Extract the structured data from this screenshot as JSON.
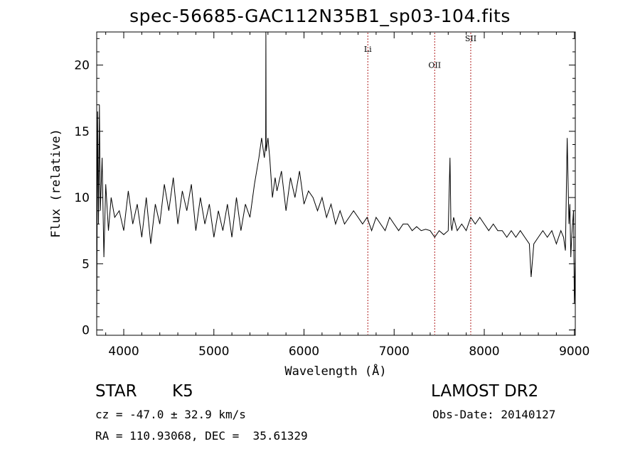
{
  "chart_data": {
    "type": "line",
    "title": "spec-56685-GAC112N35B1_sp03-104.fits",
    "xlabel": "Wavelength (Å)",
    "ylabel": "Flux (relative)",
    "xlim": [
      3700,
      9010
    ],
    "ylim": [
      -0.4,
      22.5
    ],
    "xticks": [
      4000,
      5000,
      6000,
      7000,
      8000,
      9000
    ],
    "xtick_labels": [
      "4000",
      "5000",
      "6000",
      "7000",
      "8000",
      "9000"
    ],
    "yticks": [
      0,
      5,
      10,
      15,
      20
    ],
    "ytick_labels": [
      "0",
      "5",
      "10",
      "15",
      "20"
    ],
    "grid": false,
    "line_color": "#000000",
    "series": [
      {
        "x": [
          3700,
          3710,
          3720,
          3730,
          3740,
          3760,
          3780,
          3800,
          3830,
          3860,
          3900,
          3950,
          4000,
          4050,
          4100,
          4150,
          4200,
          4250,
          4300,
          4350,
          4400,
          4450,
          4500,
          4550,
          4600,
          4650,
          4700,
          4750,
          4800,
          4850,
          4900,
          4950,
          5000,
          5050,
          5100,
          5150,
          5200,
          5250,
          5300,
          5350,
          5400,
          5450,
          5500,
          5530,
          5560,
          5575,
          5577,
          5580,
          5600,
          5620,
          5650,
          5680,
          5700,
          5750,
          5800,
          5850,
          5900,
          5950,
          6000,
          6050,
          6100,
          6150,
          6200,
          6250,
          6300,
          6350,
          6400,
          6450,
          6500,
          6550,
          6600,
          6650,
          6700,
          6750,
          6800,
          6850,
          6900,
          6950,
          7000,
          7050,
          7100,
          7150,
          7200,
          7250,
          7300,
          7350,
          7400,
          7450,
          7500,
          7550,
          7600,
          7620,
          7630,
          7640,
          7660,
          7700,
          7750,
          7800,
          7850,
          7900,
          7950,
          8000,
          8050,
          8100,
          8150,
          8200,
          8250,
          8300,
          8350,
          8400,
          8450,
          8500,
          8520,
          8550,
          8600,
          8650,
          8700,
          8750,
          8800,
          8850,
          8880,
          8900,
          8920,
          8940,
          8950,
          8960,
          8970,
          8980,
          8990,
          9000,
          9010
        ],
        "y": [
          0.5,
          16.5,
          8.0,
          17.0,
          9.0,
          13.0,
          5.5,
          11.0,
          7.5,
          10.0,
          8.5,
          9.0,
          7.5,
          10.5,
          8.0,
          9.5,
          7.0,
          10.0,
          6.5,
          9.5,
          8.0,
          11.0,
          9.0,
          11.5,
          8.0,
          10.5,
          9.0,
          11.0,
          7.5,
          10.0,
          8.0,
          9.5,
          7.0,
          9.0,
          7.5,
          9.5,
          7.0,
          10.0,
          7.5,
          9.5,
          8.5,
          11.0,
          13.0,
          14.5,
          13.0,
          14.0,
          22.5,
          13.5,
          14.5,
          13.0,
          10.0,
          11.5,
          10.5,
          12.0,
          9.0,
          11.5,
          10.0,
          12.0,
          9.5,
          10.5,
          10.0,
          9.0,
          10.0,
          8.5,
          9.5,
          8.0,
          9.0,
          8.0,
          8.5,
          9.0,
          8.5,
          8.0,
          8.5,
          7.5,
          8.5,
          8.0,
          7.5,
          8.5,
          8.0,
          7.5,
          8.0,
          8.0,
          7.5,
          7.8,
          7.5,
          7.6,
          7.5,
          7.0,
          7.5,
          7.2,
          7.5,
          13.0,
          8.0,
          7.5,
          8.5,
          7.5,
          8.0,
          7.5,
          8.5,
          8.0,
          8.5,
          8.0,
          7.5,
          8.0,
          7.5,
          7.5,
          7.0,
          7.5,
          7.0,
          7.5,
          7.0,
          6.5,
          4.0,
          6.5,
          7.0,
          7.5,
          7.0,
          7.5,
          6.5,
          7.5,
          7.0,
          6.0,
          14.5,
          8.0,
          9.5,
          5.5,
          7.0,
          8.0,
          9.0,
          2.0,
          5.5
        ]
      }
    ],
    "annotations": [
      {
        "label": "Li",
        "x": 6708,
        "label_y": 21.0
      },
      {
        "label": "OII",
        "x": 7450,
        "label_y": 19.8
      },
      {
        "label": "SII",
        "x": 7850,
        "label_y": 21.8
      }
    ],
    "annotation_line_color": "#b02020"
  },
  "info": {
    "class_label": "STAR",
    "subclass": "K5",
    "survey": "LAMOST DR2",
    "cz": "cz = -47.0 ± 32.9 km/s",
    "obs_date": "Obs-Date: 20140127",
    "coords": "RA = 110.93068, DEC =  35.61329"
  }
}
